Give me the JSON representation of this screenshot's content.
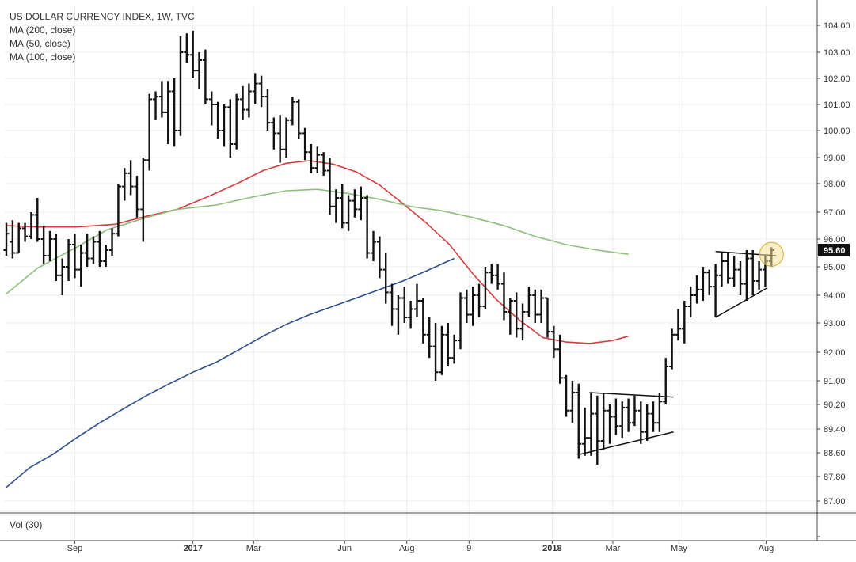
{
  "chart_data": {
    "type": "ohlc",
    "title": "US DOLLAR CURRENCY INDEX, 1W, TVC",
    "indicators": [
      {
        "name": "MA (200, close)",
        "color": "#2b4f8c",
        "values": [
          [
            0,
            87.45
          ],
          [
            30,
            88.1
          ],
          [
            60,
            88.55
          ],
          [
            90,
            89.1
          ],
          [
            120,
            89.6
          ],
          [
            150,
            90.05
          ],
          [
            180,
            90.5
          ],
          [
            210,
            90.9
          ],
          [
            240,
            91.3
          ],
          [
            270,
            91.65
          ],
          [
            300,
            92.1
          ],
          [
            330,
            92.55
          ],
          [
            360,
            92.95
          ],
          [
            390,
            93.3
          ],
          [
            420,
            93.6
          ],
          [
            450,
            93.9
          ],
          [
            480,
            94.2
          ],
          [
            510,
            94.5
          ],
          [
            540,
            94.85
          ],
          [
            560,
            95.1
          ],
          [
            576,
            95.3
          ]
        ]
      },
      {
        "name": "MA (50, close)",
        "color": "#d23c3c",
        "values": [
          [
            0,
            96.5
          ],
          [
            40,
            96.45
          ],
          [
            90,
            96.45
          ],
          [
            140,
            96.55
          ],
          [
            180,
            96.85
          ],
          [
            220,
            97.1
          ],
          [
            260,
            97.55
          ],
          [
            300,
            98.05
          ],
          [
            330,
            98.5
          ],
          [
            360,
            98.78
          ],
          [
            390,
            98.88
          ],
          [
            420,
            98.75
          ],
          [
            450,
            98.45
          ],
          [
            480,
            97.95
          ],
          [
            510,
            97.3
          ],
          [
            540,
            96.6
          ],
          [
            570,
            95.8
          ],
          [
            600,
            94.75
          ],
          [
            630,
            93.85
          ],
          [
            660,
            93.1
          ],
          [
            690,
            92.5
          ],
          [
            720,
            92.35
          ],
          [
            750,
            92.3
          ],
          [
            780,
            92.4
          ],
          [
            800,
            92.55
          ]
        ]
      },
      {
        "name": "MA (100, close)",
        "color": "#8cc07a",
        "values": [
          [
            0,
            94.05
          ],
          [
            40,
            94.95
          ],
          [
            90,
            95.7
          ],
          [
            130,
            96.35
          ],
          [
            180,
            96.8
          ],
          [
            220,
            97.1
          ],
          [
            270,
            97.25
          ],
          [
            320,
            97.55
          ],
          [
            360,
            97.75
          ],
          [
            400,
            97.8
          ],
          [
            440,
            97.65
          ],
          [
            480,
            97.45
          ],
          [
            520,
            97.2
          ],
          [
            560,
            97.05
          ],
          [
            600,
            96.8
          ],
          [
            640,
            96.5
          ],
          [
            680,
            96.1
          ],
          [
            720,
            95.8
          ],
          [
            760,
            95.6
          ],
          [
            800,
            95.45
          ]
        ]
      }
    ],
    "volume_label": "Vol (30)",
    "y_ticks": [
      "104.00",
      "103.00",
      "102.00",
      "101.00",
      "100.00",
      "99.00",
      "98.00",
      "97.00",
      "96.00",
      "95.00",
      "94.00",
      "93.00",
      "92.00",
      "91.00",
      "90.20",
      "89.40",
      "88.60",
      "87.80",
      "87.00"
    ],
    "last_price": "95.60",
    "ylim": [
      86.3,
      104.4
    ],
    "x_ticks": [
      {
        "label": "Sep",
        "pos": 88,
        "bold": false
      },
      {
        "label": "2017",
        "pos": 240,
        "bold": true
      },
      {
        "label": "Mar",
        "pos": 318,
        "bold": false
      },
      {
        "label": "Jun",
        "pos": 435,
        "bold": false
      },
      {
        "label": "Aug",
        "pos": 515,
        "bold": false
      },
      {
        "label": "9",
        "pos": 595,
        "bold": false
      },
      {
        "label": "2018",
        "pos": 702,
        "bold": true
      },
      {
        "label": "Mar",
        "pos": 780,
        "bold": false
      },
      {
        "label": "May",
        "pos": 865,
        "bold": false
      },
      {
        "label": "Aug",
        "pos": 977,
        "bold": false
      }
    ],
    "bars": [
      [
        0,
        95.6,
        96.6,
        95.4,
        96.2
      ],
      [
        8,
        95.9,
        96.7,
        95.3,
        95.5
      ],
      [
        16,
        95.5,
        96.6,
        95.5,
        96.4
      ],
      [
        24,
        96.4,
        96.6,
        95.9,
        96.1
      ],
      [
        32,
        96.1,
        97.0,
        96.0,
        96.9
      ],
      [
        40,
        96.9,
        97.5,
        95.9,
        96.0
      ],
      [
        48,
        96.0,
        96.5,
        95.1,
        95.4
      ],
      [
        56,
        95.4,
        96.3,
        95.2,
        96.0
      ],
      [
        64,
        96.0,
        96.2,
        94.5,
        94.7
      ],
      [
        72,
        94.7,
        95.3,
        94.0,
        95.0
      ],
      [
        80,
        95.0,
        96.0,
        94.5,
        95.8
      ],
      [
        88,
        95.8,
        96.2,
        94.6,
        94.9
      ],
      [
        96,
        94.9,
        95.8,
        94.3,
        95.5
      ],
      [
        104,
        95.5,
        96.2,
        95.0,
        95.3
      ],
      [
        112,
        95.3,
        96.1,
        95.1,
        95.9
      ],
      [
        120,
        95.9,
        96.3,
        95.0,
        95.2
      ],
      [
        128,
        95.2,
        95.8,
        95.0,
        95.6
      ],
      [
        136,
        95.6,
        96.4,
        95.4,
        96.2
      ],
      [
        144,
        96.2,
        98.0,
        96.1,
        97.9
      ],
      [
        152,
        97.9,
        98.6,
        97.4,
        98.4
      ],
      [
        160,
        98.4,
        98.9,
        97.6,
        97.9
      ],
      [
        168,
        97.9,
        98.3,
        96.8,
        97.1
      ],
      [
        176,
        97.1,
        99.0,
        95.9,
        98.9
      ],
      [
        184,
        98.9,
        101.4,
        98.5,
        101.2
      ],
      [
        192,
        101.2,
        101.5,
        100.4,
        101.3
      ],
      [
        200,
        101.3,
        101.9,
        100.5,
        100.7
      ],
      [
        208,
        100.7,
        101.9,
        99.5,
        101.5
      ],
      [
        216,
        101.5,
        102.0,
        99.4,
        100.0
      ],
      [
        224,
        100.0,
        103.6,
        99.8,
        103.0
      ],
      [
        232,
        103.0,
        103.7,
        102.6,
        102.9
      ],
      [
        240,
        102.9,
        103.8,
        102.0,
        102.3
      ],
      [
        248,
        102.3,
        103.0,
        101.6,
        102.7
      ],
      [
        256,
        102.7,
        103.1,
        101.0,
        101.2
      ],
      [
        264,
        101.2,
        101.5,
        100.2,
        101.0
      ],
      [
        272,
        101.0,
        101.1,
        99.7,
        100.0
      ],
      [
        280,
        100.0,
        101.0,
        99.4,
        100.9
      ],
      [
        288,
        100.9,
        101.2,
        99.0,
        99.5
      ],
      [
        296,
        99.5,
        101.4,
        99.3,
        101.2
      ],
      [
        304,
        101.2,
        101.7,
        100.4,
        100.8
      ],
      [
        312,
        100.8,
        101.8,
        100.5,
        101.5
      ],
      [
        320,
        101.5,
        102.2,
        101.0,
        101.8
      ],
      [
        328,
        101.8,
        102.1,
        100.9,
        101.3
      ],
      [
        336,
        101.3,
        101.6,
        100.0,
        100.3
      ],
      [
        344,
        100.3,
        100.5,
        99.3,
        99.9
      ],
      [
        352,
        99.9,
        100.6,
        98.8,
        99.3
      ],
      [
        360,
        99.3,
        100.5,
        99.0,
        100.4
      ],
      [
        368,
        100.4,
        101.3,
        100.2,
        101.1
      ],
      [
        376,
        101.1,
        101.2,
        99.7,
        99.9
      ],
      [
        384,
        99.9,
        100.1,
        98.9,
        99.2
      ],
      [
        392,
        99.2,
        99.5,
        98.4,
        98.6
      ],
      [
        400,
        98.6,
        99.4,
        98.4,
        99.1
      ],
      [
        408,
        99.1,
        99.2,
        98.3,
        98.5
      ],
      [
        416,
        98.5,
        99.0,
        96.9,
        97.2
      ],
      [
        424,
        97.2,
        97.8,
        96.6,
        97.5
      ],
      [
        432,
        97.5,
        98.0,
        96.4,
        96.6
      ],
      [
        440,
        96.6,
        97.6,
        96.3,
        97.4
      ],
      [
        448,
        97.4,
        97.8,
        96.8,
        97.1
      ],
      [
        456,
        97.1,
        97.9,
        96.7,
        97.5
      ],
      [
        464,
        97.5,
        97.6,
        95.3,
        95.5
      ],
      [
        472,
        95.5,
        96.3,
        95.2,
        95.9
      ],
      [
        480,
        95.9,
        96.1,
        94.6,
        94.9
      ],
      [
        488,
        94.9,
        95.5,
        93.7,
        94.1
      ],
      [
        496,
        94.1,
        94.4,
        92.9,
        93.5
      ],
      [
        504,
        93.5,
        94.0,
        92.6,
        93.9
      ],
      [
        512,
        93.9,
        94.3,
        93.0,
        93.2
      ],
      [
        520,
        93.2,
        93.8,
        92.8,
        93.5
      ],
      [
        528,
        93.5,
        94.4,
        93.2,
        93.8
      ],
      [
        536,
        93.8,
        93.9,
        92.3,
        92.6
      ],
      [
        544,
        92.6,
        93.2,
        91.8,
        92.2
      ],
      [
        552,
        92.2,
        93.0,
        91.0,
        91.3
      ],
      [
        560,
        91.3,
        92.9,
        91.2,
        92.6
      ],
      [
        568,
        92.6,
        93.0,
        91.5,
        91.8
      ],
      [
        576,
        91.8,
        92.6,
        91.6,
        92.4
      ],
      [
        584,
        92.4,
        94.1,
        92.1,
        93.9
      ],
      [
        592,
        93.9,
        94.2,
        93.0,
        93.3
      ],
      [
        600,
        93.3,
        94.3,
        92.9,
        94.0
      ],
      [
        608,
        94.0,
        94.4,
        93.2,
        93.6
      ],
      [
        616,
        93.6,
        95.0,
        93.5,
        94.8
      ],
      [
        624,
        94.8,
        95.1,
        94.4,
        94.7
      ],
      [
        632,
        94.7,
        95.1,
        94.2,
        94.4
      ],
      [
        640,
        94.4,
        94.8,
        93.1,
        93.4
      ],
      [
        648,
        93.4,
        93.9,
        92.6,
        93.8
      ],
      [
        656,
        93.8,
        94.1,
        92.5,
        92.8
      ],
      [
        664,
        92.8,
        93.7,
        92.4,
        93.4
      ],
      [
        672,
        93.4,
        94.3,
        93.2,
        94.0
      ],
      [
        680,
        94.0,
        94.2,
        93.0,
        93.3
      ],
      [
        688,
        93.3,
        94.2,
        93.0,
        93.9
      ],
      [
        696,
        93.9,
        93.9,
        92.5,
        92.7
      ],
      [
        704,
        92.7,
        92.9,
        91.8,
        92.1
      ],
      [
        712,
        92.1,
        92.6,
        90.9,
        91.1
      ],
      [
        720,
        91.1,
        91.2,
        89.8,
        90.0
      ],
      [
        728,
        90.0,
        91.0,
        89.6,
        90.6
      ],
      [
        736,
        90.6,
        90.9,
        88.4,
        88.9
      ],
      [
        744,
        88.9,
        90.1,
        88.5,
        89.1
      ],
      [
        752,
        89.1,
        90.6,
        88.5,
        89.9
      ],
      [
        760,
        89.9,
        90.5,
        88.2,
        89.0
      ],
      [
        768,
        89.0,
        90.6,
        88.7,
        90.0
      ],
      [
        776,
        90.0,
        90.2,
        88.9,
        89.8
      ],
      [
        784,
        89.8,
        90.4,
        89.2,
        89.5
      ],
      [
        792,
        89.5,
        90.3,
        89.1,
        90.1
      ],
      [
        800,
        90.1,
        90.4,
        89.3,
        89.6
      ],
      [
        808,
        89.6,
        90.5,
        89.5,
        90.0
      ],
      [
        816,
        90.0,
        90.3,
        88.9,
        89.3
      ],
      [
        824,
        89.3,
        90.2,
        89.0,
        89.9
      ],
      [
        832,
        89.9,
        90.3,
        89.3,
        89.6
      ],
      [
        840,
        89.6,
        90.6,
        89.3,
        90.3
      ],
      [
        848,
        90.3,
        91.8,
        90.2,
        91.5
      ],
      [
        856,
        91.5,
        92.8,
        91.4,
        92.6
      ],
      [
        864,
        92.6,
        93.5,
        92.4,
        92.8
      ],
      [
        872,
        92.8,
        93.8,
        92.3,
        93.6
      ],
      [
        880,
        93.6,
        94.3,
        93.2,
        94.0
      ],
      [
        888,
        94.0,
        94.7,
        93.7,
        94.2
      ],
      [
        896,
        94.2,
        95.0,
        93.8,
        94.8
      ],
      [
        904,
        94.8,
        94.9,
        94.0,
        94.3
      ],
      [
        912,
        94.3,
        95.1,
        93.2,
        94.7
      ],
      [
        920,
        94.7,
        95.5,
        94.3,
        95.2
      ],
      [
        928,
        95.2,
        95.5,
        94.4,
        94.6
      ],
      [
        936,
        94.6,
        95.4,
        94.3,
        94.9
      ],
      [
        944,
        94.9,
        95.2,
        94.0,
        94.4
      ],
      [
        952,
        94.4,
        95.6,
        93.8,
        95.3
      ],
      [
        960,
        95.3,
        95.6,
        94.0,
        94.5
      ],
      [
        968,
        94.5,
        95.2,
        94.2,
        94.9
      ],
      [
        976,
        94.9,
        95.4,
        94.3,
        95.2
      ],
      [
        984,
        95.2,
        95.7,
        95.0,
        95.6
      ]
    ],
    "trendlines": [
      [
        [
          750,
          90.6
        ],
        [
          858,
          90.45
        ]
      ],
      [
        [
          738,
          88.55
        ],
        [
          858,
          89.3
        ]
      ],
      [
        [
          912,
          93.2
        ],
        [
          978,
          94.25
        ]
      ],
      [
        [
          912,
          95.55
        ],
        [
          990,
          95.4
        ]
      ]
    ],
    "highlight": {
      "x": 984,
      "y": 95.45
    }
  }
}
